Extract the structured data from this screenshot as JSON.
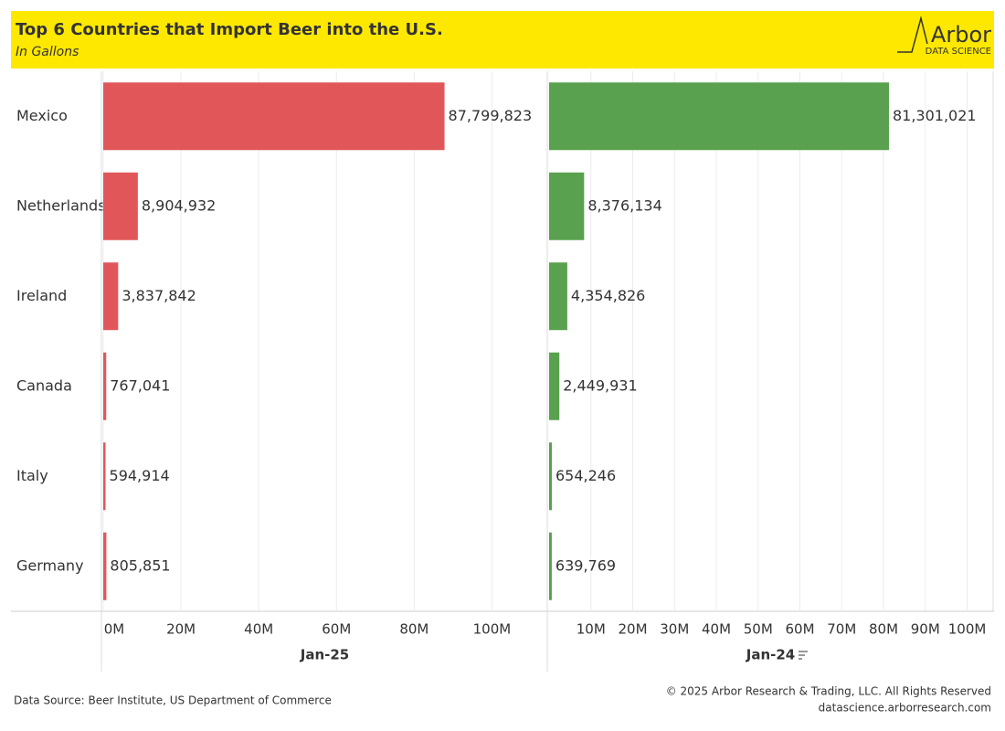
{
  "header": {
    "title": "Top 6 Countries that Import Beer into the U.S.",
    "subtitle": "In Gallons",
    "logo": "Arbor",
    "logo_sub": "DATA SCIENCE"
  },
  "chart_data": {
    "type": "bar",
    "orientation": "horizontal",
    "categories": [
      "Mexico",
      "Netherlands",
      "Ireland",
      "Canada",
      "Italy",
      "Germany"
    ],
    "series": [
      {
        "name": "Jan-25",
        "color": "#e15759",
        "values": [
          87799823,
          8904932,
          3837842,
          767041,
          594914,
          805851
        ],
        "value_labels": [
          "87,799,823",
          "8,904,932",
          "3,837,842",
          "767,041",
          "594,914",
          "805,851"
        ],
        "xlim": [
          0,
          114000000
        ],
        "xticks": [
          {
            "value": 0,
            "label": "0M"
          },
          {
            "value": 20000000,
            "label": "20M"
          },
          {
            "value": 40000000,
            "label": "40M"
          },
          {
            "value": 60000000,
            "label": "60M"
          },
          {
            "value": 80000000,
            "label": "80M"
          },
          {
            "value": 100000000,
            "label": "100M"
          }
        ]
      },
      {
        "name": "Jan-24",
        "color": "#59a14f",
        "values": [
          81301021,
          8376134,
          4354826,
          2449931,
          654246,
          639769
        ],
        "value_labels": [
          "81,301,021",
          "8,376,134",
          "4,354,826",
          "2,449,931",
          "654,246",
          "639,769"
        ],
        "xlim": [
          0,
          106000000
        ],
        "xticks": [
          {
            "value": 10000000,
            "label": "10M"
          },
          {
            "value": 20000000,
            "label": "20M"
          },
          {
            "value": 30000000,
            "label": "30M"
          },
          {
            "value": 40000000,
            "label": "40M"
          },
          {
            "value": 50000000,
            "label": "50M"
          },
          {
            "value": 60000000,
            "label": "60M"
          },
          {
            "value": 70000000,
            "label": "70M"
          },
          {
            "value": 80000000,
            "label": "80M"
          },
          {
            "value": 90000000,
            "label": "90M"
          },
          {
            "value": 100000000,
            "label": "100M"
          }
        ]
      }
    ],
    "grid": true
  },
  "footer": {
    "source": "Data Source: Beer Institute, US Department of Commerce",
    "copyright": "© 2025 Arbor Research & Trading, LLC. All Rights Reserved",
    "website": "datascience.arborresearch.com"
  }
}
